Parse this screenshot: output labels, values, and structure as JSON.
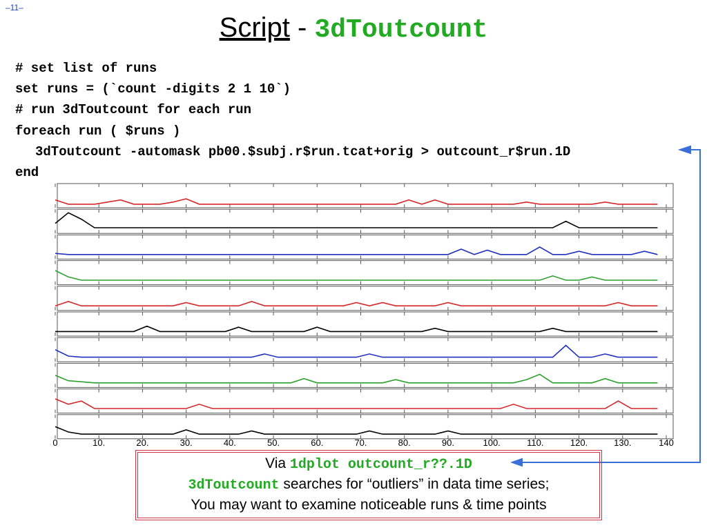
{
  "page_number": "–11–",
  "title": {
    "main": "Script",
    "separator": "-",
    "code": "3dToutcount"
  },
  "script_lines": [
    "# set list of runs",
    "set runs = (`count -digits 2 1 10`)",
    "# run 3dToutcount for each run",
    "foreach run ( $runs )",
    "3dToutcount -automask pb00.$subj.r$run.tcat+orig > outcount_r$run.1D",
    "end"
  ],
  "chart_data": {
    "type": "line",
    "x": [
      0,
      3,
      6,
      9,
      12,
      15,
      18,
      21,
      24,
      27,
      30,
      33,
      36,
      39,
      42,
      45,
      48,
      51,
      54,
      57,
      60,
      63,
      66,
      69,
      72,
      75,
      78,
      81,
      84,
      87,
      90,
      93,
      96,
      99,
      102,
      105,
      108,
      111,
      114,
      117,
      120,
      123,
      126,
      129,
      132,
      135,
      138
    ],
    "xlim": [
      0,
      140
    ],
    "ylim": [
      0,
      1
    ],
    "xticks": [
      0,
      {
        "value": 10,
        "label": "10."
      },
      {
        "value": 20,
        "label": "20."
      },
      {
        "value": 30,
        "label": "30."
      },
      {
        "value": 40,
        "label": "40."
      },
      {
        "value": 50,
        "label": "50."
      },
      {
        "value": 60,
        "label": "60."
      },
      {
        "value": 70,
        "label": "70."
      },
      {
        "value": 80,
        "label": "80."
      },
      {
        "value": 90,
        "label": "90."
      },
      {
        "value": 100,
        "label": "100."
      },
      {
        "value": 110,
        "label": "110."
      },
      {
        "value": 120,
        "label": "120."
      },
      {
        "value": 130,
        "label": "130."
      },
      140
    ],
    "series": [
      {
        "color": "#d62728",
        "values": [
          0.3,
          0.1,
          0.1,
          0.1,
          0.2,
          0.3,
          0.1,
          0.1,
          0.1,
          0.2,
          0.35,
          0.1,
          0.1,
          0.1,
          0.1,
          0.1,
          0.1,
          0.1,
          0.1,
          0.1,
          0.1,
          0.1,
          0.1,
          0.1,
          0.1,
          0.1,
          0.1,
          0.3,
          0.1,
          0.3,
          0.1,
          0.1,
          0.1,
          0.1,
          0.1,
          0.1,
          0.2,
          0.1,
          0.1,
          0.1,
          0.1,
          0.1,
          0.2,
          0.1,
          0.1,
          0.1,
          0.1
        ]
      },
      {
        "color": "#000000",
        "values": [
          0.4,
          0.9,
          0.6,
          0.2,
          0.2,
          0.2,
          0.2,
          0.2,
          0.2,
          0.2,
          0.2,
          0.2,
          0.2,
          0.2,
          0.2,
          0.2,
          0.2,
          0.2,
          0.2,
          0.2,
          0.2,
          0.2,
          0.2,
          0.2,
          0.2,
          0.2,
          0.2,
          0.2,
          0.2,
          0.2,
          0.2,
          0.2,
          0.2,
          0.2,
          0.2,
          0.2,
          0.2,
          0.2,
          0.2,
          0.5,
          0.2,
          0.2,
          0.2,
          0.2,
          0.2,
          0.2,
          0.2
        ]
      },
      {
        "color": "#1f2fbf",
        "values": [
          0.2,
          0.15,
          0.15,
          0.15,
          0.15,
          0.15,
          0.15,
          0.15,
          0.15,
          0.15,
          0.15,
          0.15,
          0.15,
          0.15,
          0.15,
          0.15,
          0.15,
          0.15,
          0.15,
          0.15,
          0.15,
          0.15,
          0.15,
          0.15,
          0.15,
          0.15,
          0.15,
          0.15,
          0.15,
          0.15,
          0.15,
          0.4,
          0.15,
          0.35,
          0.15,
          0.15,
          0.15,
          0.5,
          0.15,
          0.15,
          0.3,
          0.15,
          0.15,
          0.15,
          0.15,
          0.3,
          0.15
        ]
      },
      {
        "color": "#2ca02c",
        "values": [
          0.6,
          0.3,
          0.15,
          0.15,
          0.15,
          0.15,
          0.15,
          0.15,
          0.15,
          0.15,
          0.15,
          0.15,
          0.15,
          0.15,
          0.15,
          0.15,
          0.15,
          0.15,
          0.15,
          0.15,
          0.15,
          0.15,
          0.15,
          0.15,
          0.15,
          0.15,
          0.15,
          0.15,
          0.15,
          0.15,
          0.15,
          0.15,
          0.15,
          0.15,
          0.15,
          0.15,
          0.15,
          0.15,
          0.35,
          0.15,
          0.15,
          0.3,
          0.15,
          0.15,
          0.15,
          0.15,
          0.15
        ]
      },
      {
        "color": "#d62728",
        "values": [
          0.15,
          0.35,
          0.15,
          0.15,
          0.15,
          0.15,
          0.15,
          0.15,
          0.15,
          0.15,
          0.3,
          0.15,
          0.15,
          0.15,
          0.15,
          0.35,
          0.15,
          0.15,
          0.15,
          0.15,
          0.15,
          0.15,
          0.15,
          0.3,
          0.15,
          0.3,
          0.15,
          0.15,
          0.15,
          0.15,
          0.3,
          0.15,
          0.15,
          0.15,
          0.15,
          0.15,
          0.15,
          0.15,
          0.15,
          0.15,
          0.15,
          0.15,
          0.15,
          0.3,
          0.15,
          0.15,
          0.15
        ]
      },
      {
        "color": "#000000",
        "values": [
          0.15,
          0.15,
          0.15,
          0.15,
          0.15,
          0.15,
          0.15,
          0.4,
          0.15,
          0.15,
          0.15,
          0.15,
          0.15,
          0.15,
          0.35,
          0.15,
          0.15,
          0.15,
          0.15,
          0.15,
          0.35,
          0.15,
          0.15,
          0.15,
          0.15,
          0.15,
          0.15,
          0.15,
          0.15,
          0.3,
          0.15,
          0.15,
          0.15,
          0.15,
          0.15,
          0.15,
          0.15,
          0.15,
          0.3,
          0.15,
          0.15,
          0.15,
          0.15,
          0.15,
          0.15,
          0.15,
          0.15
        ]
      },
      {
        "color": "#1f2fbf",
        "values": [
          0.5,
          0.2,
          0.15,
          0.15,
          0.15,
          0.15,
          0.15,
          0.15,
          0.15,
          0.15,
          0.15,
          0.15,
          0.15,
          0.15,
          0.15,
          0.15,
          0.3,
          0.15,
          0.15,
          0.15,
          0.15,
          0.15,
          0.15,
          0.15,
          0.3,
          0.15,
          0.15,
          0.15,
          0.15,
          0.15,
          0.15,
          0.15,
          0.15,
          0.15,
          0.15,
          0.15,
          0.15,
          0.15,
          0.15,
          0.7,
          0.15,
          0.15,
          0.3,
          0.15,
          0.15,
          0.15,
          0.15
        ]
      },
      {
        "color": "#2ca02c",
        "values": [
          0.5,
          0.25,
          0.2,
          0.15,
          0.15,
          0.15,
          0.15,
          0.15,
          0.15,
          0.15,
          0.15,
          0.15,
          0.15,
          0.15,
          0.15,
          0.15,
          0.15,
          0.15,
          0.15,
          0.35,
          0.15,
          0.15,
          0.15,
          0.15,
          0.15,
          0.15,
          0.3,
          0.15,
          0.15,
          0.15,
          0.15,
          0.15,
          0.15,
          0.15,
          0.15,
          0.15,
          0.3,
          0.55,
          0.15,
          0.15,
          0.15,
          0.15,
          0.35,
          0.15,
          0.15,
          0.15,
          0.15
        ]
      },
      {
        "color": "#d62728",
        "values": [
          0.6,
          0.35,
          0.5,
          0.15,
          0.15,
          0.15,
          0.15,
          0.15,
          0.15,
          0.15,
          0.15,
          0.35,
          0.15,
          0.15,
          0.15,
          0.15,
          0.15,
          0.15,
          0.15,
          0.15,
          0.15,
          0.15,
          0.15,
          0.15,
          0.15,
          0.15,
          0.15,
          0.15,
          0.15,
          0.15,
          0.15,
          0.15,
          0.15,
          0.15,
          0.15,
          0.35,
          0.15,
          0.15,
          0.15,
          0.15,
          0.15,
          0.15,
          0.15,
          0.5,
          0.15,
          0.15,
          0.15
        ]
      },
      {
        "color": "#000000",
        "values": [
          0.5,
          0.25,
          0.15,
          0.15,
          0.15,
          0.15,
          0.15,
          0.15,
          0.15,
          0.15,
          0.35,
          0.15,
          0.15,
          0.15,
          0.15,
          0.3,
          0.15,
          0.15,
          0.15,
          0.15,
          0.15,
          0.15,
          0.15,
          0.15,
          0.3,
          0.15,
          0.15,
          0.15,
          0.15,
          0.15,
          0.3,
          0.15,
          0.15,
          0.15,
          0.15,
          0.15,
          0.15,
          0.15,
          0.15,
          0.15,
          0.15,
          0.15,
          0.15,
          0.15,
          0.15,
          0.15,
          0.15
        ]
      }
    ]
  },
  "caption": {
    "line1_text": "Via",
    "line1_code": "1dplot outcount_r??.1D",
    "line2_code": "3dToutcount",
    "line2_text": "searches for “outliers” in data time series;",
    "line3": "You may want to examine noticeable runs & time points"
  }
}
